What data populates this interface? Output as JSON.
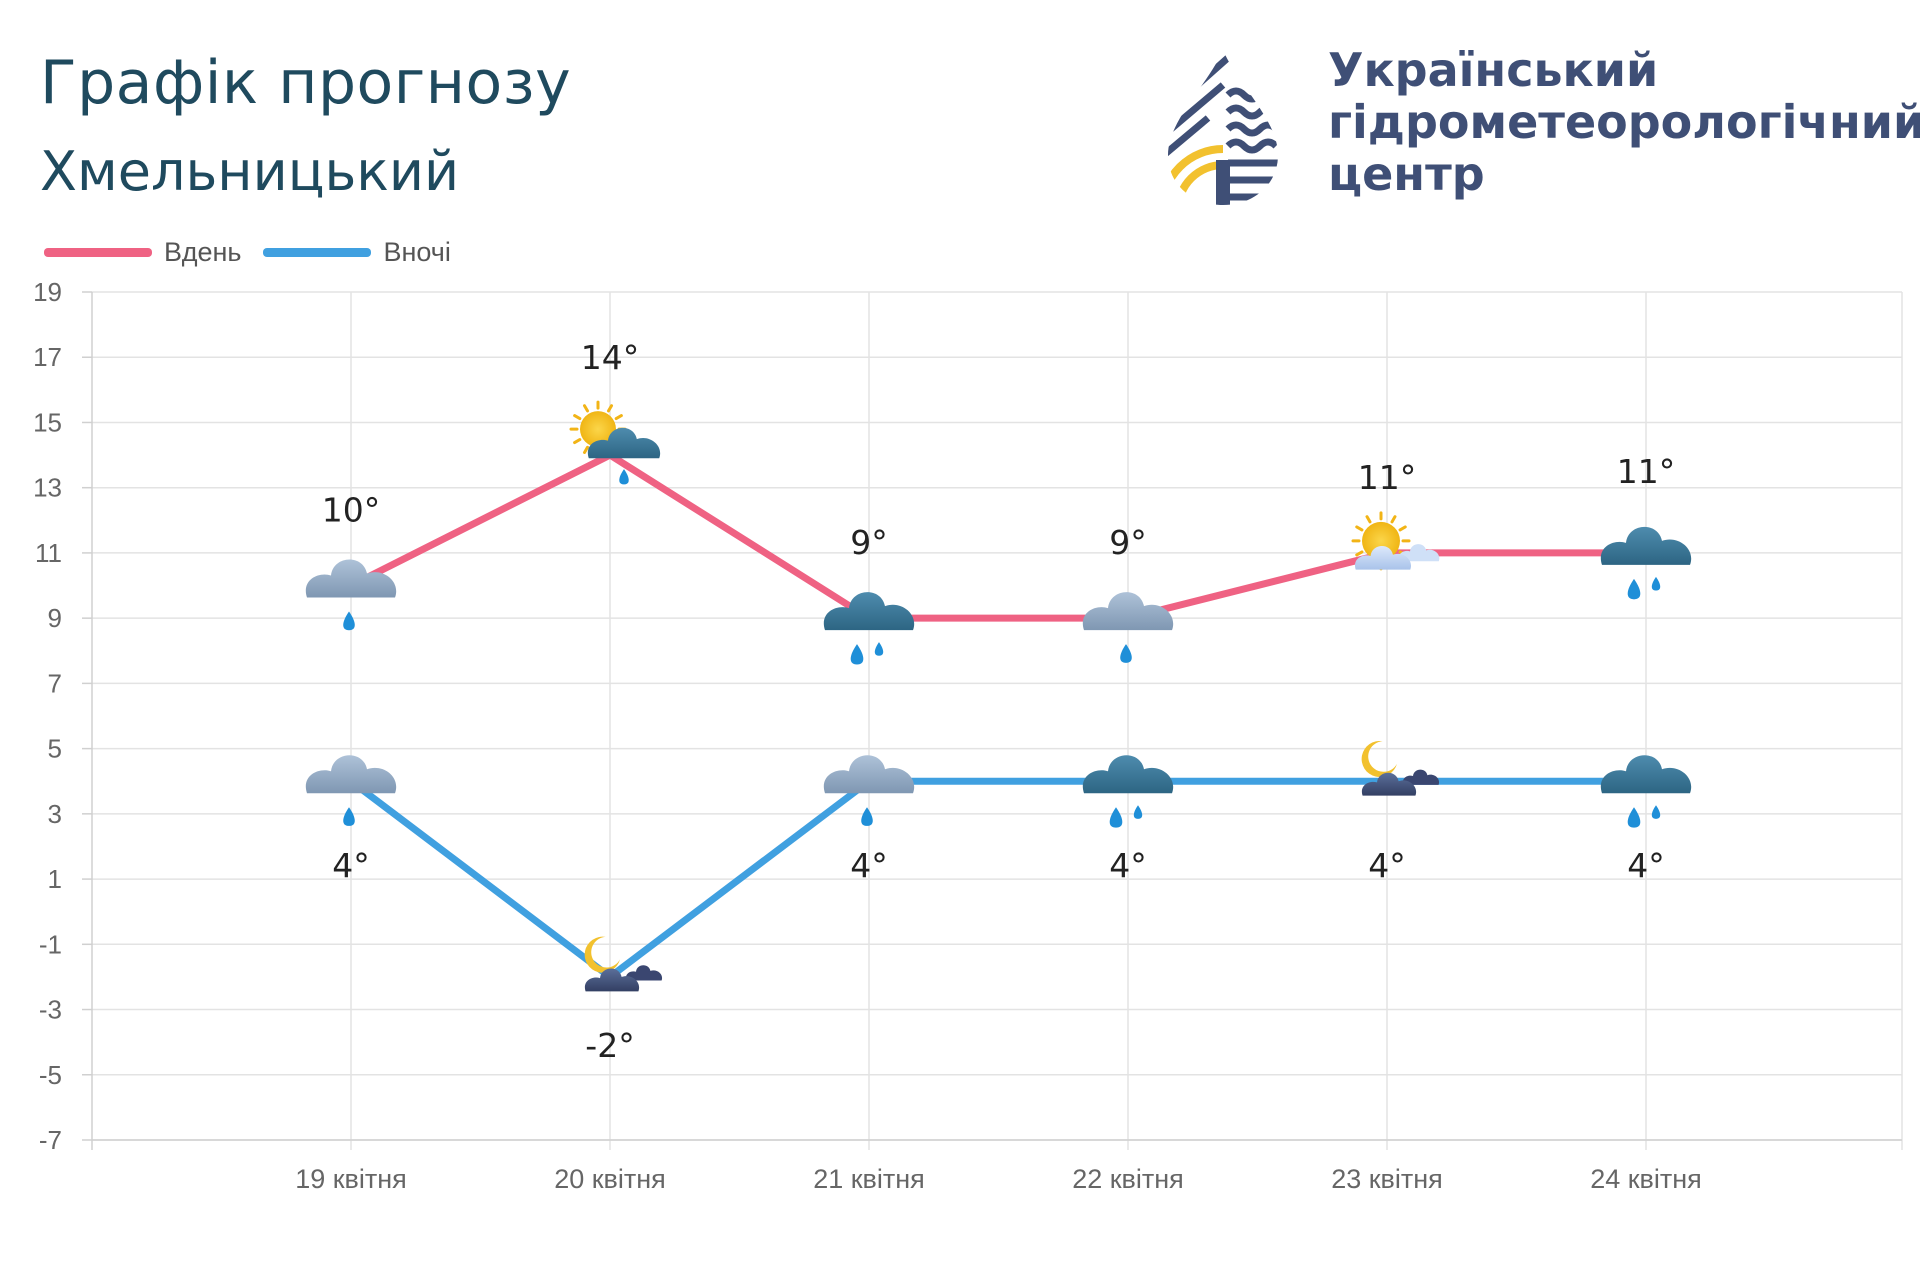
{
  "header": {
    "title": "Графік прогнозу",
    "city": "Хмельницький",
    "org_lines": [
      "Український",
      "гідрометеорологічний",
      "центр"
    ]
  },
  "colors": {
    "day": "#ef6283",
    "night": "#40a0e0",
    "title": "#1f4a5e",
    "org": "#3f4f76",
    "logo_blue": "#3f4f76",
    "logo_yellow": "#f2c12e"
  },
  "chart_data": {
    "type": "line",
    "categories": [
      "19 квітня",
      "20 квітня",
      "21 квітня",
      "22 квітня",
      "23 квітня",
      "24 квітня"
    ],
    "series": [
      {
        "name": "Вдень",
        "values": [
          10,
          14,
          9,
          9,
          11,
          11
        ],
        "labels": [
          "10°",
          "14°",
          "9°",
          "9°",
          "11°",
          "11°"
        ],
        "icons": [
          "cloud-light-rain-icon",
          "sun-cloud-rain-icon",
          "dark-cloud-rain-icon",
          "cloud-light-rain-icon",
          "sun-cloud-icon",
          "dark-cloud-rain-icon"
        ]
      },
      {
        "name": "Вночі",
        "values": [
          4,
          -2,
          4,
          4,
          4,
          4
        ],
        "labels": [
          "4°",
          "-2°",
          "4°",
          "4°",
          "4°",
          "4°"
        ],
        "icons": [
          "cloud-light-rain-icon",
          "moon-cloud-icon",
          "cloud-light-rain-icon",
          "dark-cloud-rain-icon",
          "moon-cloud-icon",
          "dark-cloud-rain-icon"
        ]
      }
    ],
    "y_ticks": [
      "19",
      "17",
      "15",
      "13",
      "11",
      "9",
      "7",
      "5",
      "3",
      "1",
      "-1",
      "-3",
      "-5",
      "-7"
    ],
    "ylim": [
      -7,
      19
    ],
    "grid": true,
    "legend_position": "top-left"
  }
}
